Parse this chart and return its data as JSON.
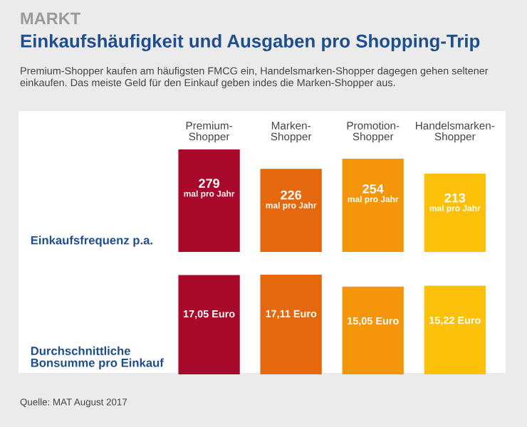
{
  "chart_data": [
    {
      "type": "bar",
      "title": "Einkaufshäufigkeit und Ausgaben pro Shopping-Trip",
      "subtitle": "Premium-Shopper kaufen am häufigsten FMCG ein, Handelsmarken-Shopper dagegen gehen seltener einkaufen. Das meiste Geld für den Einkauf geben indes die Marken-Shopper aus.",
      "annotations": [
        "MARKT"
      ],
      "ylabel": "Einkaufsfrequenz p.a.",
      "categories": [
        "Premium-\nShopper",
        "Marken-\nShopper",
        "Promotion-\nShopper",
        "Handelsmarken-\nShopper"
      ],
      "values": [
        279,
        226,
        254,
        213
      ],
      "value_labels": [
        "279\nmal pro Jahr",
        "226\nmal pro Jahr",
        "254\nmal pro Jahr",
        "213\nmal pro Jahr"
      ],
      "colors": [
        "#a8082a",
        "#e5670e",
        "#f3960a",
        "#fbc10a"
      ]
    },
    {
      "type": "bar",
      "ylabel": "Durchschnittliche\nBonsumme pro Einkauf",
      "annotations": [
        "Quelle: MAT August 2017"
      ],
      "categories": [
        null,
        null,
        null,
        null
      ],
      "values": [
        17.05,
        17.11,
        15.05,
        15.22
      ],
      "value_labels": [
        "17,05 Euro",
        "17,11 Euro",
        "15,05 Euro",
        "15,22 Euro"
      ],
      "colors": [
        "#a8082a",
        "#e5670e",
        "#f3960a",
        "#fbc10a"
      ]
    }
  ]
}
